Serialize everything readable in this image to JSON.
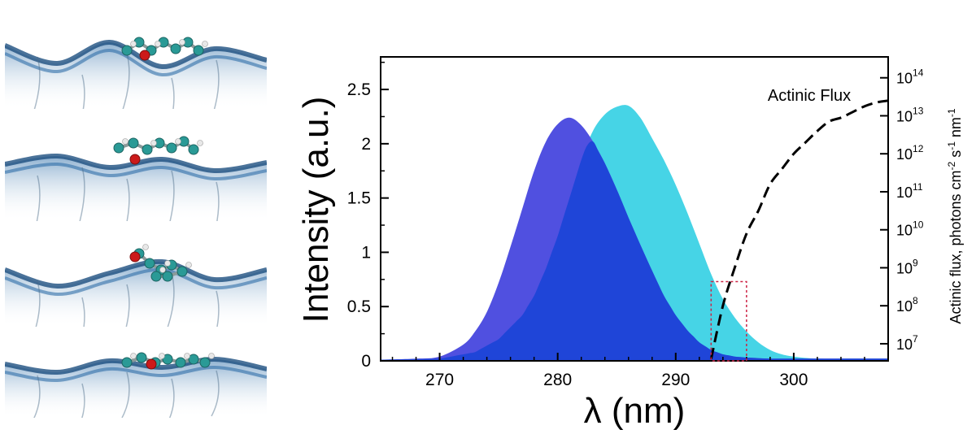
{
  "panels": [
    {
      "name": "snapshot-1"
    },
    {
      "name": "snapshot-2"
    },
    {
      "name": "snapshot-3"
    },
    {
      "name": "snapshot-4"
    }
  ],
  "colors": {
    "series_a": "#5050e0",
    "series_b": "#46d4e6",
    "overlap": "#1f45d8",
    "flux_line": "#000000",
    "highlight_box": "#cc2244",
    "surface": "#2f6ea8"
  },
  "chart_data": {
    "type": "area",
    "title": "",
    "xlabel": "λ (nm)",
    "ylabel": "Intensity (a.u.)",
    "y2label_parts": [
      "Actinic flux, photons cm",
      "-2",
      " s",
      "-1",
      " nm",
      "-1"
    ],
    "xlim": [
      265,
      308
    ],
    "ylim": [
      0,
      2.8
    ],
    "xticks": [
      270,
      280,
      290,
      300
    ],
    "yticks": [
      0,
      0.5,
      1,
      1.5,
      2,
      2.5
    ],
    "ytick_labels": [
      "0",
      "0.5",
      "1",
      "1.5",
      "2",
      "2.5"
    ],
    "y2lim_log10": [
      6.55,
      14.55
    ],
    "y2ticks_exp": [
      7,
      8,
      9,
      10,
      11,
      12,
      13,
      14
    ],
    "y2_base": "10",
    "series": [
      {
        "x": [
          265,
          268,
          270,
          272,
          273,
          274,
          275,
          276,
          277,
          278,
          279,
          280,
          281,
          282,
          283,
          284,
          285,
          286,
          287,
          288,
          289,
          290,
          291,
          292,
          293,
          294,
          295,
          296,
          298,
          300,
          302,
          305,
          308
        ],
        "y": [
          0.01,
          0.02,
          0.04,
          0.15,
          0.27,
          0.45,
          0.72,
          1.05,
          1.4,
          1.75,
          2.02,
          2.18,
          2.24,
          2.17,
          2.02,
          1.82,
          1.58,
          1.32,
          1.07,
          0.83,
          0.6,
          0.42,
          0.28,
          0.17,
          0.1,
          0.06,
          0.04,
          0.03,
          0.02,
          0.02,
          0.02,
          0.02,
          0.02
        ]
      },
      {
        "x": [
          265,
          270,
          273,
          275,
          277,
          278,
          279,
          280,
          281,
          282,
          283,
          284,
          285,
          286,
          287,
          288,
          289,
          290,
          291,
          292,
          293,
          294,
          295,
          296,
          297,
          298,
          299,
          300,
          302,
          305,
          308
        ],
        "y": [
          0.01,
          0.02,
          0.08,
          0.2,
          0.42,
          0.6,
          0.85,
          1.15,
          1.5,
          1.85,
          2.12,
          2.27,
          2.34,
          2.35,
          2.24,
          2.05,
          1.85,
          1.62,
          1.36,
          1.08,
          0.8,
          0.57,
          0.4,
          0.27,
          0.17,
          0.1,
          0.06,
          0.04,
          0.02,
          0.02,
          0.02
        ]
      },
      {
        "name": "Actinic Flux",
        "style": "dashed",
        "x": [
          293.0,
          294,
          295,
          296,
          297,
          298,
          299,
          300,
          301,
          302,
          303,
          304,
          305,
          306,
          307,
          308
        ],
        "y_log10": [
          6.6,
          8.0,
          9.0,
          9.9,
          10.5,
          11.2,
          11.6,
          12.0,
          12.3,
          12.6,
          12.85,
          12.95,
          13.1,
          13.25,
          13.35,
          13.4
        ]
      }
    ],
    "highlight_box": {
      "x": [
        293,
        296
      ],
      "y": [
        0,
        0.73
      ]
    },
    "annotations": [
      {
        "text": "Actinic Flux"
      }
    ]
  }
}
